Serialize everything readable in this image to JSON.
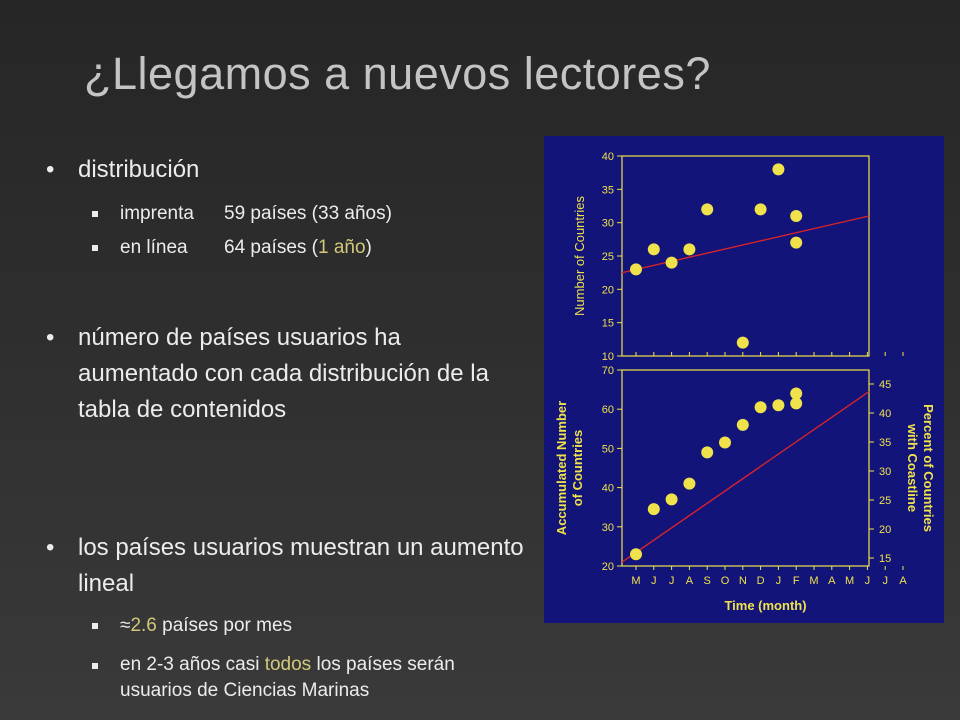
{
  "title": "¿Llegamos a nuevos lectores?",
  "bullets": {
    "b1": {
      "mark": "•",
      "text": "distribución",
      "sub": [
        {
          "label": "imprenta",
          "value": "59 países (33 años)"
        },
        {
          "label": "en línea",
          "value_pre": "64 países (",
          "value_hl": "1 año",
          "value_post": ")"
        }
      ]
    },
    "b2": {
      "mark": "•",
      "text": "número de países usuarios ha aumentado con cada distribución de la tabla de contenidos"
    },
    "b3": {
      "mark": "•",
      "text": "los países usuarios muestran un aumento lineal",
      "sub": [
        {
          "approx": "≈",
          "hl": "2.6",
          "text": " países por mes"
        },
        {
          "pre": "en 2-3 años casi ",
          "hl": "todos",
          "post": " los países serán usuarios de Ciencias Marinas"
        }
      ]
    }
  },
  "colors": {
    "chart_bg": "#121479",
    "chart_fg": "#f0e24a",
    "trend": "#d8232a",
    "highlight": "#d2c87a"
  },
  "chart_data": [
    {
      "type": "scatter",
      "title": "",
      "ylabel": "Number of Countries",
      "ylim": [
        10,
        40
      ],
      "yticks": [
        "10",
        "15",
        "20",
        "25",
        "30",
        "35",
        "40"
      ],
      "x_index": [
        0,
        1,
        2,
        3,
        4,
        6,
        7,
        8,
        9,
        9
      ],
      "points": [
        23,
        26,
        24,
        26,
        32,
        12,
        32,
        38,
        31,
        27
      ],
      "trend": [
        22.5,
        31
      ]
    },
    {
      "type": "scatter",
      "title": "",
      "xlabel": "Time (month)",
      "categories": [
        "M",
        "J",
        "J",
        "A",
        "S",
        "O",
        "N",
        "D",
        "J",
        "F",
        "M",
        "A",
        "M",
        "J",
        "J",
        "A"
      ],
      "ylabel": "Accumulated Number of Countries",
      "ylabel_lines": [
        "Accumulated Number",
        "of Countries"
      ],
      "ylim": [
        20,
        70
      ],
      "yticks": [
        "20",
        "30",
        "40",
        "50",
        "60",
        "70"
      ],
      "y2label": "Percent of Countries with Coastline",
      "y2label_lines": [
        "Percent of Countries",
        "with Coastline"
      ],
      "y2ticks": [
        "15",
        "20",
        "25",
        "30",
        "35",
        "40",
        "45"
      ],
      "x_index": [
        0,
        1,
        2,
        3,
        4,
        5,
        6,
        7,
        8,
        9,
        9
      ],
      "points": [
        23,
        34.5,
        37,
        41,
        49,
        51.5,
        56,
        60.5,
        61,
        64,
        61.5
      ],
      "trend": [
        21,
        64.5
      ]
    }
  ]
}
